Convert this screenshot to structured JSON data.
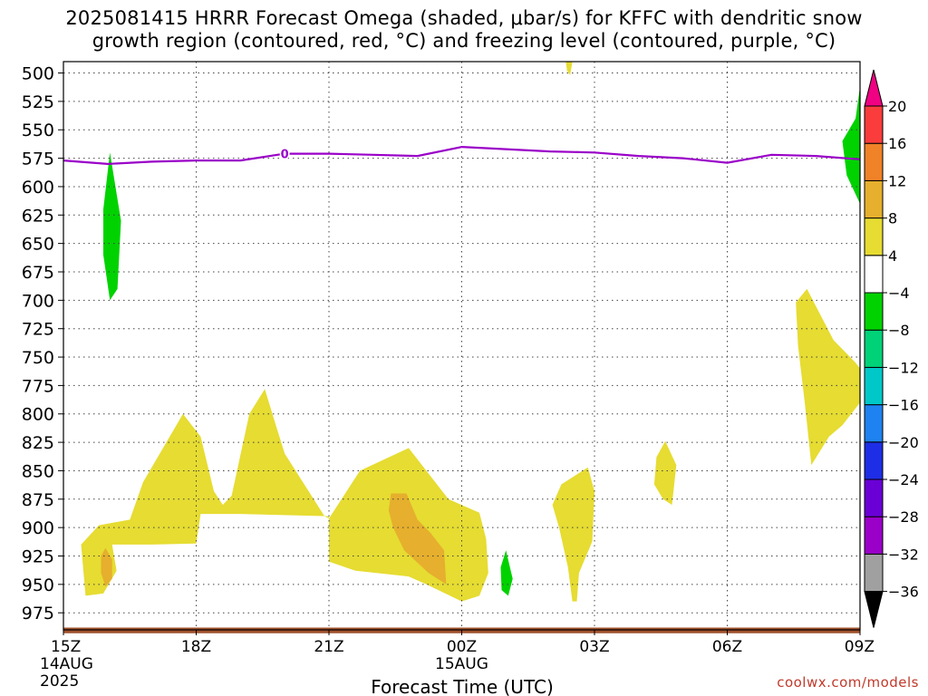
{
  "title_line1": "2025081415 HRRR Forecast Omega (shaded, μbar/s) for KFFC with dendritic snow",
  "title_line2": "growth region (contoured, red, °C) and freezing level (contoured, purple, °C)",
  "credit": "coolwx.com/models",
  "chart_data": {
    "type": "time-height cross section (filled contours)",
    "title": "2025081415 HRRR Forecast Omega (shaded, μbar/s) for KFFC with dendritic snow growth region (contoured, red, °C) and freezing level (contoured, purple, °C)",
    "xlabel": "Forecast Time (UTC)",
    "ylabel": "",
    "x_range_hours_from_15Z": [
      0,
      18
    ],
    "y_range_hPa": [
      490,
      990
    ],
    "y_inverted": true,
    "grid": "dotted",
    "x_ticks": [
      {
        "hour": 0,
        "label": "15Z",
        "date": "14AUG",
        "year": "2025"
      },
      {
        "hour": 3,
        "label": "18Z"
      },
      {
        "hour": 6,
        "label": "21Z"
      },
      {
        "hour": 9,
        "label": "00Z",
        "date": "15AUG"
      },
      {
        "hour": 12,
        "label": "03Z"
      },
      {
        "hour": 15,
        "label": "06Z"
      },
      {
        "hour": 18,
        "label": "09Z"
      }
    ],
    "y_ticks": [
      500,
      525,
      550,
      575,
      600,
      625,
      650,
      675,
      700,
      725,
      750,
      775,
      800,
      825,
      850,
      875,
      900,
      925,
      950,
      975
    ],
    "colorbar": {
      "levels": [
        -36,
        -32,
        -28,
        -24,
        -20,
        -16,
        -12,
        -8,
        -4,
        4,
        8,
        12,
        16,
        20
      ],
      "labels": [
        "20",
        "16",
        "12",
        "8",
        "4",
        "−4",
        "−8",
        "−12",
        "−16",
        "−20",
        "−24",
        "−28",
        "−32",
        "−36"
      ],
      "colors": [
        "#000000",
        "#a0a0a0",
        "#9a00c8",
        "#6a00d6",
        "#1e2ee6",
        "#1e82f0",
        "#00c8c8",
        "#00d278",
        "#00d200",
        "#ffffff",
        "#e6dc32",
        "#e6af2d",
        "#f08228",
        "#fa3c3c",
        "#f00082"
      ]
    },
    "freezing_level": {
      "label": "0",
      "color": "#9a00c8",
      "points": [
        [
          0,
          577
        ],
        [
          1,
          580
        ],
        [
          2,
          578
        ],
        [
          3,
          577
        ],
        [
          4,
          577
        ],
        [
          5,
          571
        ],
        [
          6,
          571
        ],
        [
          7,
          572
        ],
        [
          8,
          573
        ],
        [
          9,
          565
        ],
        [
          10,
          567
        ],
        [
          11,
          569
        ],
        [
          12,
          570
        ],
        [
          13,
          573
        ],
        [
          14,
          575
        ],
        [
          15,
          579
        ],
        [
          16,
          572
        ],
        [
          17,
          573
        ],
        [
          18,
          576
        ]
      ]
    },
    "omega_regions": [
      {
        "value_range": [
          -8,
          -4
        ],
        "color": "#00d200",
        "polygon": [
          [
            1.05,
            570
          ],
          [
            1.3,
            630
          ],
          [
            1.22,
            690
          ],
          [
            1.05,
            700
          ],
          [
            0.9,
            660
          ],
          [
            0.9,
            620
          ]
        ]
      },
      {
        "value_range": [
          -8,
          -4
        ],
        "color": "#00d200",
        "polygon": [
          [
            17.9,
            540
          ],
          [
            18.0,
            512
          ],
          [
            18.0,
            615
          ],
          [
            17.7,
            590
          ],
          [
            17.6,
            560
          ]
        ]
      },
      {
        "value_range": [
          -8,
          -4
        ],
        "color": "#00d200",
        "polygon": [
          [
            10.0,
            920
          ],
          [
            10.15,
            945
          ],
          [
            10.05,
            960
          ],
          [
            9.9,
            955
          ],
          [
            9.88,
            935
          ]
        ]
      },
      {
        "value_range": [
          4,
          8
        ],
        "color": "#e6dc32",
        "polygon": [
          [
            0.5,
            960
          ],
          [
            0.4,
            915
          ],
          [
            0.8,
            898
          ],
          [
            1.5,
            893
          ],
          [
            1.8,
            860
          ],
          [
            2.1,
            840
          ],
          [
            2.7,
            800
          ],
          [
            3.1,
            820
          ],
          [
            3.4,
            868
          ],
          [
            3.6,
            880
          ],
          [
            3.8,
            872
          ],
          [
            4.2,
            800
          ],
          [
            4.55,
            778
          ],
          [
            4.8,
            810
          ],
          [
            5.0,
            835
          ],
          [
            5.9,
            890
          ],
          [
            6.0,
            892
          ],
          [
            6.7,
            850
          ],
          [
            7.8,
            830
          ],
          [
            8.0,
            840
          ],
          [
            8.7,
            875
          ],
          [
            9.4,
            887
          ],
          [
            9.55,
            910
          ],
          [
            9.6,
            940
          ],
          [
            9.4,
            960
          ],
          [
            9.0,
            965
          ],
          [
            8.2,
            950
          ],
          [
            7.8,
            943
          ],
          [
            6.6,
            938
          ],
          [
            6.0,
            930
          ],
          [
            6.0,
            890
          ],
          [
            4.0,
            888
          ],
          [
            3.1,
            888
          ],
          [
            3.0,
            914
          ],
          [
            2.0,
            915
          ],
          [
            1.1,
            915
          ],
          [
            1.2,
            938
          ],
          [
            0.9,
            958
          ]
        ]
      },
      {
        "value_range": [
          8,
          12
        ],
        "color": "#e6af2d",
        "polygon": [
          [
            0.95,
            918
          ],
          [
            1.1,
            928
          ],
          [
            1.1,
            945
          ],
          [
            0.95,
            952
          ],
          [
            0.85,
            940
          ],
          [
            0.85,
            925
          ]
        ]
      },
      {
        "value_range": [
          8,
          12
        ],
        "color": "#e6af2d",
        "polygon": [
          [
            7.4,
            870
          ],
          [
            7.75,
            870
          ],
          [
            8.0,
            893
          ],
          [
            8.3,
            905
          ],
          [
            8.6,
            920
          ],
          [
            8.65,
            950
          ],
          [
            8.25,
            940
          ],
          [
            7.7,
            920
          ],
          [
            7.45,
            900
          ],
          [
            7.35,
            885
          ]
        ]
      },
      {
        "value_range": [
          4,
          8
        ],
        "color": "#e6dc32",
        "polygon": [
          [
            11.85,
            847
          ],
          [
            12.0,
            868
          ],
          [
            11.95,
            912
          ],
          [
            11.65,
            940
          ],
          [
            11.6,
            965
          ],
          [
            11.5,
            965
          ],
          [
            11.4,
            935
          ],
          [
            11.2,
            900
          ],
          [
            11.05,
            880
          ],
          [
            11.25,
            862
          ]
        ]
      },
      {
        "value_range": [
          4,
          8
        ],
        "color": "#e6dc32",
        "polygon": [
          [
            13.6,
            824
          ],
          [
            13.85,
            845
          ],
          [
            13.75,
            880
          ],
          [
            13.55,
            875
          ],
          [
            13.35,
            862
          ],
          [
            13.4,
            838
          ]
        ]
      },
      {
        "value_range": [
          4,
          8
        ],
        "color": "#e6dc32",
        "polygon": [
          [
            16.8,
            690
          ],
          [
            17.0,
            705
          ],
          [
            17.4,
            735
          ],
          [
            17.9,
            755
          ],
          [
            18.0,
            760
          ],
          [
            18.0,
            790
          ],
          [
            17.6,
            810
          ],
          [
            17.3,
            820
          ],
          [
            16.9,
            845
          ],
          [
            16.75,
            790
          ],
          [
            16.6,
            740
          ],
          [
            16.55,
            702
          ]
        ]
      },
      {
        "value_range": [
          4,
          8
        ],
        "color": "#e6dc32",
        "polygon": [
          [
            11.35,
            490
          ],
          [
            11.5,
            490
          ],
          [
            11.45,
            502
          ],
          [
            11.38,
            498
          ]
        ]
      }
    ],
    "terrain_band": {
      "color": "#a0522d",
      "top_hPa": 988,
      "bottom_hPa": 993
    }
  }
}
